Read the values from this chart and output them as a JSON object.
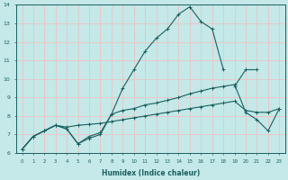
{
  "xlabel": "Humidex (Indice chaleur)",
  "background_color": "#c5e8e8",
  "grid_color": "#e8c8c8",
  "line_color": "#1a6060",
  "xlim": [
    -0.5,
    23.5
  ],
  "ylim": [
    6,
    14
  ],
  "xticks": [
    0,
    1,
    2,
    3,
    4,
    5,
    6,
    7,
    8,
    9,
    10,
    11,
    12,
    13,
    14,
    15,
    16,
    17,
    18,
    19,
    20,
    21,
    22,
    23
  ],
  "yticks": [
    6,
    7,
    8,
    9,
    10,
    11,
    12,
    13,
    14
  ],
  "series": [
    {
      "x": [
        0,
        1,
        2,
        3,
        4,
        5,
        6,
        7,
        8,
        9,
        10,
        11,
        12,
        13,
        14,
        15,
        16,
        17,
        18,
        19,
        20,
        21,
        22,
        23
      ],
      "y": [
        6.2,
        6.9,
        7.2,
        7.5,
        7.3,
        6.5,
        6.8,
        7.0,
        8.1,
        9.5,
        10.5,
        11.5,
        12.2,
        12.7,
        13.5,
        13.9,
        13.1,
        12.7,
        10.5,
        null,
        null,
        null,
        null,
        null
      ]
    },
    {
      "x": [
        0,
        1,
        2,
        3,
        4,
        5,
        6,
        7,
        8,
        9,
        10,
        11,
        12,
        13,
        14,
        15,
        16,
        17,
        18,
        19,
        20,
        21,
        22,
        23
      ],
      "y": [
        6.2,
        6.9,
        7.2,
        7.5,
        7.3,
        6.5,
        6.9,
        7.1,
        8.1,
        8.3,
        8.4,
        8.6,
        8.7,
        8.85,
        9.0,
        9.2,
        9.35,
        9.5,
        9.6,
        9.7,
        8.2,
        7.8,
        7.2,
        8.4
      ]
    },
    {
      "x": [
        0,
        1,
        2,
        3,
        4,
        5,
        6,
        7,
        8,
        9,
        10,
        11,
        12,
        13,
        14,
        15,
        16,
        17,
        18,
        19,
        20,
        21,
        22,
        23
      ],
      "y": [
        6.2,
        6.9,
        7.2,
        7.5,
        7.4,
        7.5,
        7.55,
        7.6,
        7.7,
        7.8,
        7.9,
        8.0,
        8.1,
        8.2,
        8.3,
        8.4,
        8.5,
        8.6,
        8.7,
        8.8,
        8.3,
        8.2,
        8.2,
        8.4
      ]
    },
    {
      "x": [
        0,
        1,
        2,
        3,
        4,
        5,
        6,
        7,
        8,
        9,
        10,
        11,
        12,
        13,
        14,
        15,
        16,
        17,
        18,
        19,
        20,
        21,
        22,
        23
      ],
      "y": [
        null,
        null,
        null,
        null,
        null,
        null,
        null,
        null,
        null,
        null,
        null,
        null,
        null,
        null,
        null,
        null,
        null,
        null,
        null,
        9.6,
        10.5,
        10.5,
        null,
        null
      ]
    }
  ]
}
